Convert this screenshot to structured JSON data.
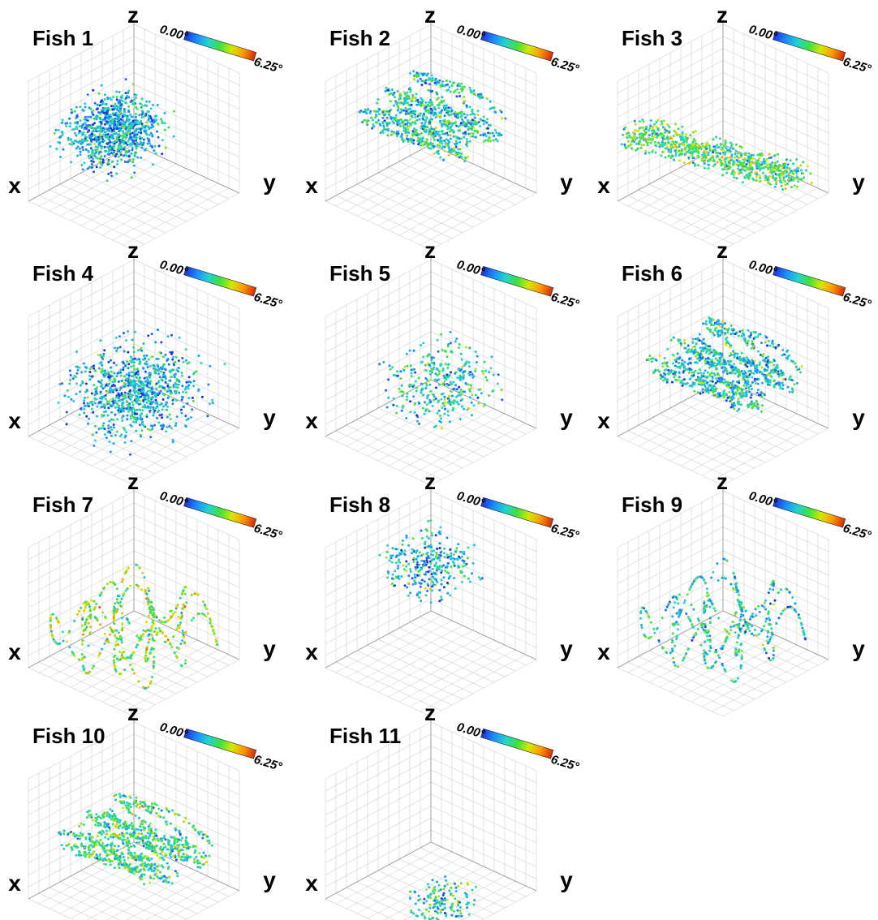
{
  "chart_data": {
    "type": "scatter",
    "projection": "3d-isometric",
    "axes": {
      "x_label": "x",
      "y_label": "y",
      "z_label": "z",
      "grid": true
    },
    "colorbar": {
      "min_label": "0.00°",
      "max_label": "6.25°",
      "min": 0.0,
      "max": 6.25,
      "colormap": [
        "#1f2fd6",
        "#1a8cff",
        "#22d3d0",
        "#3fe03f",
        "#d4e800",
        "#ff9900",
        "#d42a0a"
      ]
    },
    "panels": [
      {
        "title": "Fish 1",
        "pattern": "cluster",
        "spread": 0.75,
        "density": 900,
        "mean_angle": 1.6,
        "offset": [
          0.15,
          -0.05,
          0.15
        ]
      },
      {
        "title": "Fish 2",
        "pattern": "lines",
        "spread": 0.9,
        "density": 900,
        "mean_angle": 2.2,
        "offset": [
          0.0,
          0.0,
          0.25
        ]
      },
      {
        "title": "Fish 3",
        "pattern": "diagonal",
        "spread": 0.8,
        "density": 800,
        "mean_angle": 2.8,
        "offset": [
          0.0,
          0.0,
          0.0
        ]
      },
      {
        "title": "Fish 4",
        "pattern": "cluster",
        "spread": 0.95,
        "density": 900,
        "mean_angle": 1.6,
        "offset": [
          0.0,
          0.0,
          -0.1
        ]
      },
      {
        "title": "Fish 5",
        "pattern": "sparse",
        "spread": 0.6,
        "density": 350,
        "mean_angle": 2.0,
        "offset": [
          0.0,
          0.1,
          0.0
        ]
      },
      {
        "title": "Fish 6",
        "pattern": "lines",
        "spread": 0.95,
        "density": 1000,
        "mean_angle": 2.0,
        "offset": [
          0.0,
          0.0,
          0.15
        ]
      },
      {
        "title": "Fish 7",
        "pattern": "curves",
        "spread": 0.9,
        "density": 600,
        "mean_angle": 3.4,
        "offset": [
          0.0,
          0.0,
          0.0
        ]
      },
      {
        "title": "Fish 8",
        "pattern": "sparse",
        "spread": 0.5,
        "density": 300,
        "mean_angle": 1.8,
        "offset": [
          -0.2,
          -0.2,
          0.2
        ]
      },
      {
        "title": "Fish 9",
        "pattern": "curves",
        "spread": 0.85,
        "density": 550,
        "mean_angle": 2.2,
        "offset": [
          0.0,
          0.0,
          0.05
        ]
      },
      {
        "title": "Fish 10",
        "pattern": "lines",
        "spread": 0.95,
        "density": 900,
        "mean_angle": 2.6,
        "offset": [
          0.0,
          0.0,
          0.05
        ]
      },
      {
        "title": "Fish 11",
        "pattern": "sparse",
        "spread": 0.35,
        "density": 150,
        "mean_angle": 2.2,
        "offset": [
          0.2,
          0.3,
          -0.3
        ]
      }
    ]
  }
}
